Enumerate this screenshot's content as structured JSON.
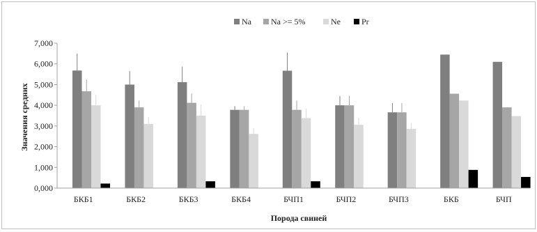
{
  "chart_data": {
    "type": "bar",
    "title": "",
    "xlabel": "Порода свиней",
    "ylabel": "Значения средних",
    "ylim": [
      0,
      7000
    ],
    "yticks": [
      0,
      1000,
      2000,
      3000,
      4000,
      5000,
      6000,
      7000
    ],
    "ytick_labels": [
      "0,000",
      "1,000",
      "2,000",
      "3,000",
      "4,000",
      "5,000",
      "6,000",
      "7,000"
    ],
    "grid": false,
    "legend_position": "top",
    "categories": [
      "БКБ1",
      "БКБ2",
      "БКБ3",
      "БКБ4",
      "БЧП1",
      "БЧП2",
      "БЧП3",
      "БКБ",
      "БЧП"
    ],
    "series": [
      {
        "name": "Na",
        "color": "#7f7f7f",
        "values": [
          5680,
          5000,
          5120,
          3780,
          5670,
          4000,
          3660,
          6450,
          6100
        ],
        "errors": [
          820,
          650,
          750,
          180,
          880,
          450,
          450,
          null,
          null
        ]
      },
      {
        "name": "Na >= 5%",
        "color": "#a6a6a6",
        "values": [
          4680,
          3900,
          4120,
          3780,
          3780,
          4000,
          3660,
          4560,
          3900
        ],
        "errors": [
          570,
          330,
          450,
          180,
          450,
          450,
          450,
          null,
          null
        ]
      },
      {
        "name": "Ne",
        "color": "#d9d9d9",
        "values": [
          4000,
          3100,
          3500,
          2620,
          3380,
          3060,
          2860,
          4230,
          3480
        ],
        "errors": [
          500,
          330,
          550,
          280,
          470,
          330,
          290,
          null,
          null
        ]
      },
      {
        "name": "Pr",
        "color": "#000000",
        "values": [
          220,
          null,
          330,
          null,
          330,
          null,
          null,
          880,
          540
        ],
        "errors": [
          null,
          null,
          null,
          null,
          null,
          null,
          null,
          null,
          null
        ]
      }
    ]
  }
}
